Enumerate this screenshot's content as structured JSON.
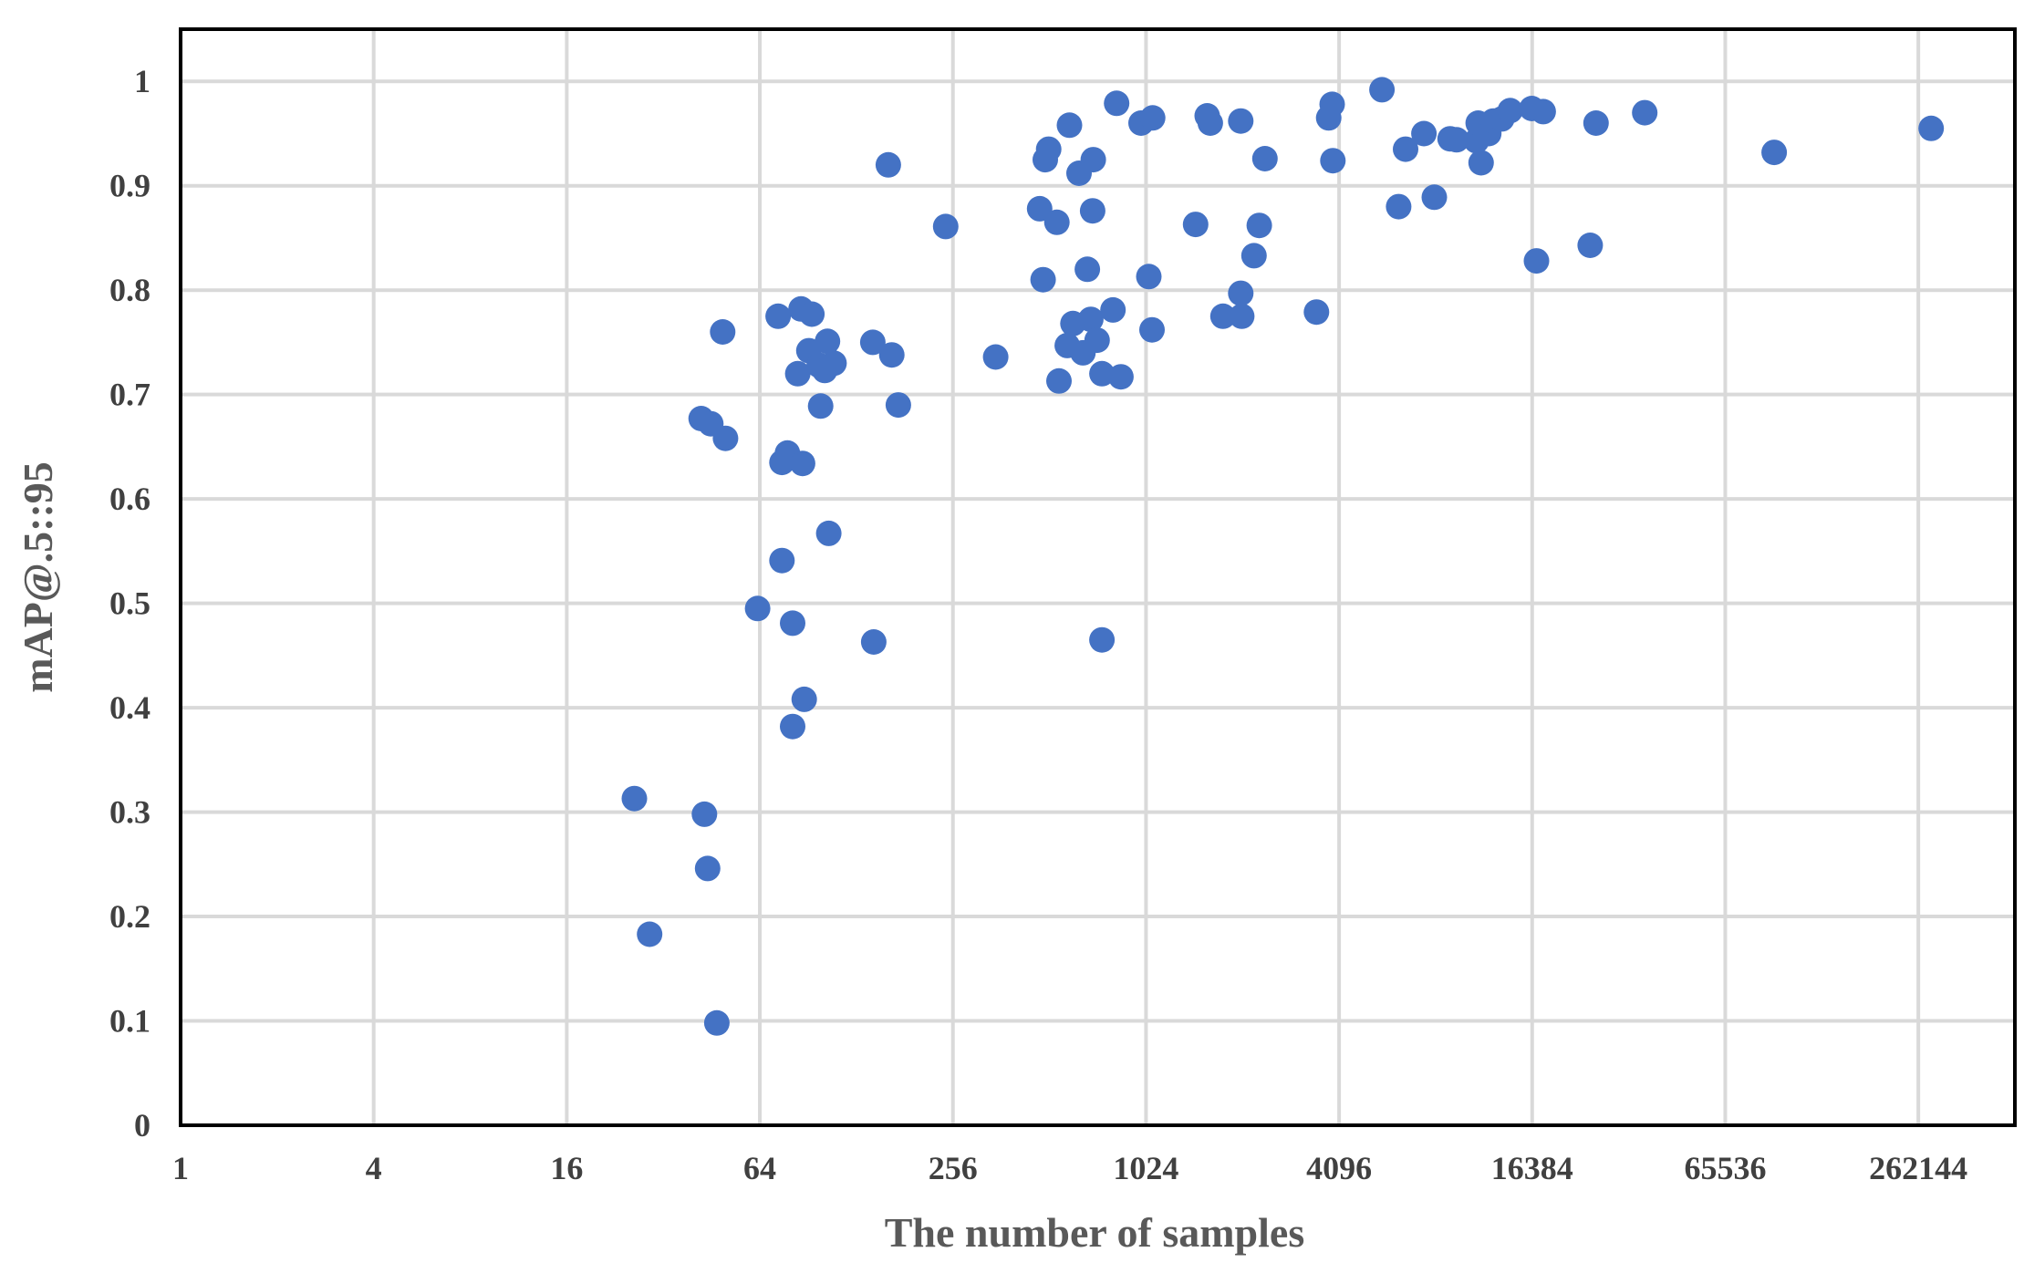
{
  "chart_data": {
    "type": "scatter",
    "title": "",
    "xlabel": "The number of samples",
    "ylabel": "mAP@.5::95",
    "x_scale": "log2",
    "xlim": [
      1,
      524288
    ],
    "ylim": [
      0,
      1.05
    ],
    "x_ticks": [
      1,
      4,
      16,
      64,
      256,
      1024,
      4096,
      16384,
      65536,
      262144
    ],
    "x_tick_labels": [
      "1",
      "4",
      "16",
      "64",
      "256",
      "1024",
      "4096",
      "16384",
      "65536",
      "262144"
    ],
    "y_ticks": [
      0,
      0.1,
      0.2,
      0.3,
      0.4,
      0.5,
      0.6,
      0.7,
      0.8,
      0.9,
      1
    ],
    "y_tick_labels": [
      "0",
      "0.1",
      "0.2",
      "0.3",
      "0.4",
      "0.5",
      "0.6",
      "0.7",
      "0.8",
      "0.9",
      "1"
    ],
    "grid": true,
    "legend": "none",
    "marker_color": "#4472c4",
    "series": [
      {
        "name": "samples",
        "points": [
          [
            26,
            0.313
          ],
          [
            29,
            0.183
          ],
          [
            42,
            0.677
          ],
          [
            43,
            0.298
          ],
          [
            44,
            0.246
          ],
          [
            45,
            0.672
          ],
          [
            47,
            0.098
          ],
          [
            49,
            0.76
          ],
          [
            50,
            0.658
          ],
          [
            63,
            0.495
          ],
          [
            73,
            0.775
          ],
          [
            75,
            0.635
          ],
          [
            75,
            0.541
          ],
          [
            78,
            0.644
          ],
          [
            81,
            0.481
          ],
          [
            81,
            0.382
          ],
          [
            84,
            0.72
          ],
          [
            86,
            0.782
          ],
          [
            87,
            0.634
          ],
          [
            88,
            0.408
          ],
          [
            91,
            0.742
          ],
          [
            93,
            0.777
          ],
          [
            98,
            0.728
          ],
          [
            99,
            0.689
          ],
          [
            102,
            0.723
          ],
          [
            104,
            0.751
          ],
          [
            105,
            0.567
          ],
          [
            109,
            0.73
          ],
          [
            144,
            0.75
          ],
          [
            145,
            0.463
          ],
          [
            161,
            0.92
          ],
          [
            165,
            0.738
          ],
          [
            173,
            0.69
          ],
          [
            243,
            0.861
          ],
          [
            348,
            0.736
          ],
          [
            477,
            0.878
          ],
          [
            489,
            0.81
          ],
          [
            497,
            0.925
          ],
          [
            509,
            0.935
          ],
          [
            540,
            0.865
          ],
          [
            548,
            0.713
          ],
          [
            582,
            0.747
          ],
          [
            591,
            0.958
          ],
          [
            606,
            0.768
          ],
          [
            633,
            0.912
          ],
          [
            651,
            0.74
          ],
          [
            672,
            0.82
          ],
          [
            689,
            0.772
          ],
          [
            698,
            0.876
          ],
          [
            701,
            0.925
          ],
          [
            721,
            0.752
          ],
          [
            746,
            0.72
          ],
          [
            746,
            0.465
          ],
          [
            808,
            0.781
          ],
          [
            829,
            0.979
          ],
          [
            855,
            0.717
          ],
          [
            988,
            0.96
          ],
          [
            1045,
            0.813
          ],
          [
            1069,
            0.762
          ],
          [
            1074,
            0.965
          ],
          [
            1462,
            0.863
          ],
          [
            1589,
            0.967
          ],
          [
            1625,
            0.96
          ],
          [
            1779,
            0.775
          ],
          [
            2022,
            0.962
          ],
          [
            2022,
            0.797
          ],
          [
            2036,
            0.775
          ],
          [
            2223,
            0.833
          ],
          [
            2309,
            0.862
          ],
          [
            2405,
            0.926
          ],
          [
            3481,
            0.779
          ],
          [
            3801,
            0.965
          ],
          [
            3897,
            0.978
          ],
          [
            3918,
            0.924
          ],
          [
            5571,
            0.992
          ],
          [
            6281,
            0.88
          ],
          [
            6601,
            0.935
          ],
          [
            7529,
            0.95
          ],
          [
            8113,
            0.889
          ],
          [
            9088,
            0.945
          ],
          [
            9520,
            0.944
          ],
          [
            10982,
            0.943
          ],
          [
            11122,
            0.96
          ],
          [
            11356,
            0.922
          ],
          [
            11614,
            0.955
          ],
          [
            11997,
            0.95
          ],
          [
            12397,
            0.962
          ],
          [
            13173,
            0.964
          ],
          [
            13995,
            0.972
          ],
          [
            16342,
            0.974
          ],
          [
            16900,
            0.828
          ],
          [
            17736,
            0.971
          ],
          [
            24858,
            0.843
          ],
          [
            25915,
            0.96
          ],
          [
            36764,
            0.97
          ],
          [
            93130,
            0.932
          ],
          [
            287345,
            0.955
          ]
        ]
      }
    ]
  }
}
